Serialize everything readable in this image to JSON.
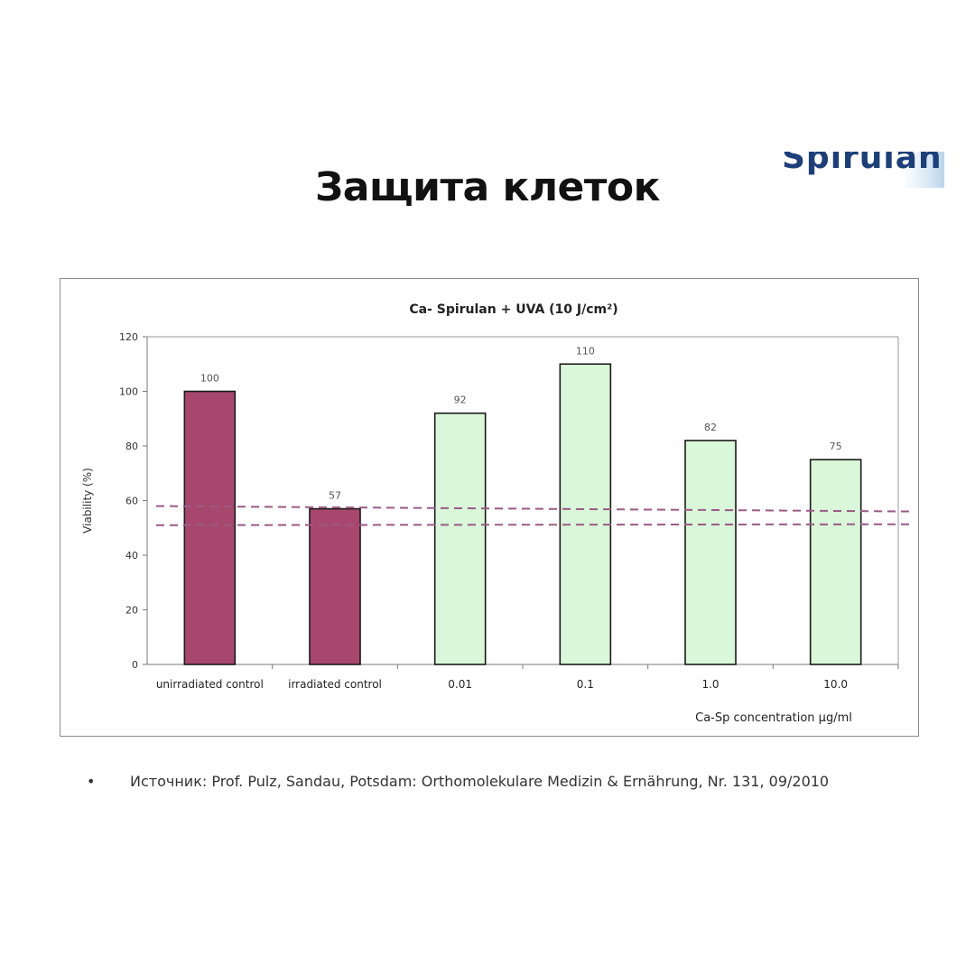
{
  "title": "Защита клеток",
  "logo": {
    "text": "Spirulan"
  },
  "source": {
    "bullet": "•",
    "text": "Источник: Prof. Pulz, Sandau, Potsdam: Orthomolekulare Medizin & Ernährung, Nr. 131, 09/2010"
  },
  "chart_data": {
    "type": "bar",
    "title": "Ca- Spirulan + UVA (10 J/cm²)",
    "ylabel": "Viability (%)",
    "xlabel": "Ca-Sp concentration µg/ml",
    "ylim": [
      0,
      120
    ],
    "yticks": [
      0,
      20,
      40,
      60,
      80,
      100,
      120
    ],
    "categories": [
      "unirradiated control",
      "irradiated control",
      "0.01",
      "0.1",
      "1.0",
      "10.0"
    ],
    "values": [
      100,
      57,
      92,
      110,
      82,
      75
    ],
    "data_labels": [
      "100",
      "57",
      "92",
      "110",
      "82",
      "75"
    ],
    "bar_colors": [
      "#a8476e",
      "#a8476e",
      "#d9f7d9",
      "#d9f7d9",
      "#d9f7d9",
      "#d9f7d9"
    ],
    "reference_lines": [
      57,
      51
    ],
    "reference_line_color": "#9c5a86",
    "grid": false
  }
}
